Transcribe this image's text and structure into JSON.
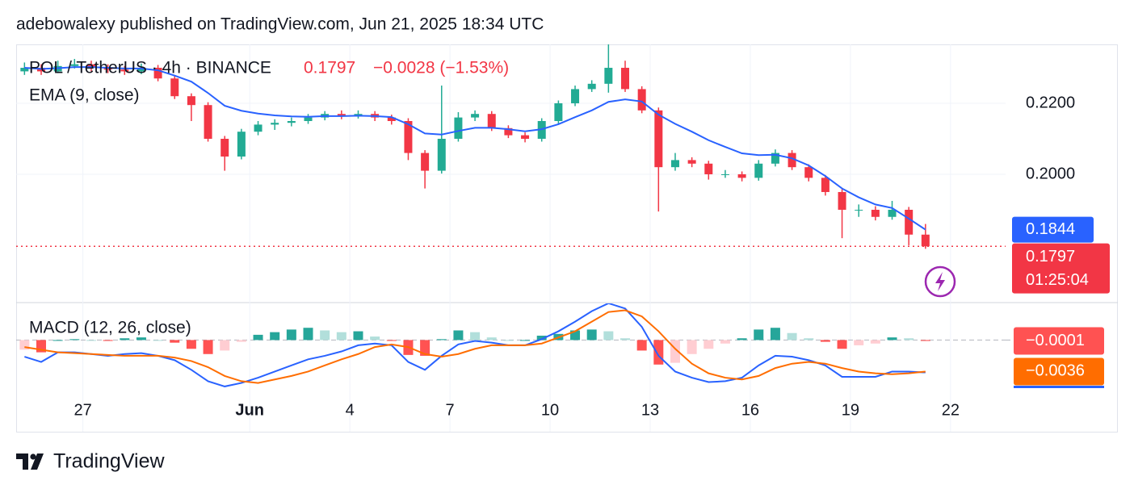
{
  "header": {
    "publisher": "adebowalexy published on TradingView.com, Jun 21, 2025 18:34 UTC",
    "logo": "TradingView"
  },
  "chart_data": [
    {
      "type": "candlestick",
      "symbol": "POL / TetherUS · 4h · BINANCE",
      "change": "−0.0028 (−1.53%)",
      "countdown": "01:25:04",
      "up_color": "#22ab94",
      "down_color": "#f23645",
      "open": [
        0.229,
        0.23,
        0.229,
        0.2305,
        0.231,
        0.23,
        0.2295,
        0.229,
        0.23,
        0.227,
        0.222,
        0.2195,
        0.21,
        0.205,
        0.212,
        0.214,
        0.2145,
        0.215,
        0.216,
        0.217,
        0.2165,
        0.217,
        0.216,
        0.215,
        0.206,
        0.201,
        0.21,
        0.216,
        0.217,
        0.213,
        0.211,
        0.21,
        0.215,
        0.22,
        0.224,
        0.2255,
        0.23,
        0.224,
        0.218,
        0.202,
        0.204,
        0.203,
        0.2,
        0.2,
        0.199,
        0.203,
        0.206,
        0.202,
        0.199,
        0.195,
        0.19,
        0.19,
        0.188,
        0.19,
        0.183
      ],
      "high": [
        0.2315,
        0.231,
        0.232,
        0.2325,
        0.232,
        0.231,
        0.2305,
        0.2312,
        0.2308,
        0.2278,
        0.2228,
        0.2203,
        0.2108,
        0.2128,
        0.215,
        0.2155,
        0.216,
        0.217,
        0.2178,
        0.218,
        0.218,
        0.2178,
        0.2168,
        0.2158,
        0.2068,
        0.225,
        0.2175,
        0.218,
        0.2178,
        0.2138,
        0.2118,
        0.2158,
        0.2208,
        0.225,
        0.2265,
        0.2366,
        0.232,
        0.2248,
        0.2188,
        0.206,
        0.2048,
        0.2038,
        0.2012,
        0.2008,
        0.204,
        0.207,
        0.2068,
        0.2028,
        0.1998,
        0.1958,
        0.1915,
        0.191,
        0.1925,
        0.1908,
        0.186
      ],
      "low": [
        0.228,
        0.228,
        0.2285,
        0.2298,
        0.229,
        0.2285,
        0.228,
        0.2282,
        0.2262,
        0.2212,
        0.215,
        0.2092,
        0.201,
        0.2042,
        0.211,
        0.2125,
        0.2135,
        0.2142,
        0.2152,
        0.2155,
        0.2157,
        0.215,
        0.214,
        0.204,
        0.196,
        0.2002,
        0.2092,
        0.215,
        0.2122,
        0.2102,
        0.209,
        0.2092,
        0.2142,
        0.2192,
        0.2232,
        0.223,
        0.2232,
        0.2172,
        0.1895,
        0.201,
        0.202,
        0.1985,
        0.199,
        0.198,
        0.1982,
        0.2022,
        0.2012,
        0.198,
        0.194,
        0.182,
        0.188,
        0.187,
        0.1872,
        0.18,
        0.179
      ],
      "close": [
        0.23,
        0.229,
        0.2305,
        0.231,
        0.23,
        0.2295,
        0.229,
        0.23,
        0.227,
        0.222,
        0.2195,
        0.21,
        0.205,
        0.212,
        0.214,
        0.2145,
        0.215,
        0.216,
        0.217,
        0.2165,
        0.217,
        0.216,
        0.215,
        0.206,
        0.201,
        0.21,
        0.216,
        0.217,
        0.213,
        0.211,
        0.21,
        0.215,
        0.22,
        0.224,
        0.2255,
        0.23,
        0.224,
        0.218,
        0.202,
        0.204,
        0.203,
        0.2,
        0.2,
        0.199,
        0.203,
        0.206,
        0.202,
        0.199,
        0.195,
        0.19,
        0.19,
        0.188,
        0.19,
        0.183,
        0.1797
      ],
      "overlay": {
        "name": "EMA (9, close)",
        "color": "#2962ff",
        "values": [
          0.23,
          0.2297,
          0.2299,
          0.2302,
          0.2302,
          0.23,
          0.2298,
          0.2298,
          0.2293,
          0.2278,
          0.2261,
          0.2229,
          0.2193,
          0.2179,
          0.2171,
          0.2166,
          0.2163,
          0.2162,
          0.2164,
          0.2164,
          0.2165,
          0.2164,
          0.2161,
          0.2141,
          0.2115,
          0.2112,
          0.2122,
          0.2131,
          0.2131,
          0.2127,
          0.2121,
          0.2127,
          0.2141,
          0.2161,
          0.218,
          0.2204,
          0.2211,
          0.2205,
          0.2168,
          0.2142,
          0.212,
          0.2096,
          0.2077,
          0.2059,
          0.2054,
          0.2055,
          0.2045,
          0.2025,
          0.1995,
          0.196,
          0.1935,
          0.1915,
          0.1905,
          0.1875,
          0.1844
        ]
      },
      "xlim": [
        0,
        59.3
      ],
      "xticks": [
        {
          "value": 4,
          "label": "27"
        },
        {
          "value": 14,
          "label": "Jun"
        },
        {
          "value": 20,
          "label": "4"
        },
        {
          "value": 26,
          "label": "7"
        },
        {
          "value": 32,
          "label": "10"
        },
        {
          "value": 38,
          "label": "13"
        },
        {
          "value": 44,
          "label": "16"
        },
        {
          "value": 50,
          "label": "19"
        },
        {
          "value": 56,
          "label": "22"
        }
      ],
      "ylim": [
        0.1643,
        0.2366
      ],
      "yticks": [
        {
          "value": 0.22,
          "label": "0.2200"
        },
        {
          "value": 0.2,
          "label": "0.2000"
        }
      ],
      "grid": true
    },
    {
      "type": "macd",
      "title": "MACD (12, 26, close)",
      "ylim": [
        -0.0054,
        0.004
      ],
      "macd": {
        "color": "#2962ff",
        "values": [
          -0.0019,
          -0.0025,
          -0.0014,
          -0.0014,
          -0.0016,
          -0.0018,
          -0.0016,
          -0.0015,
          -0.0018,
          -0.0023,
          -0.0034,
          -0.0047,
          -0.0053,
          -0.0049,
          -0.0043,
          -0.0036,
          -0.0029,
          -0.0022,
          -0.0018,
          -0.0013,
          -0.0006,
          -0.0004,
          -0.0006,
          -0.0025,
          -0.0034,
          -0.0018,
          -0.0005,
          -0.0001,
          -0.0003,
          -0.0006,
          -0.0006,
          0.0001,
          0.001,
          0.0021,
          0.0033,
          0.0042,
          0.0036,
          0.0015,
          -0.0018,
          -0.0036,
          -0.0043,
          -0.0048,
          -0.0047,
          -0.0043,
          -0.0029,
          -0.0018,
          -0.0019,
          -0.0023,
          -0.0029,
          -0.0042,
          -0.0042,
          -0.0042,
          -0.0036,
          -0.0036,
          -0.0037
        ]
      },
      "signal": {
        "color": "#ff6d00",
        "values": [
          -0.0008,
          -0.0011,
          -0.0014,
          -0.0015,
          -0.0016,
          -0.0017,
          -0.0018,
          -0.0018,
          -0.0018,
          -0.002,
          -0.0024,
          -0.0031,
          -0.0041,
          -0.0047,
          -0.0049,
          -0.0045,
          -0.0041,
          -0.0036,
          -0.0029,
          -0.0022,
          -0.0016,
          -0.0008,
          -0.0005,
          -0.0008,
          -0.0016,
          -0.0019,
          -0.0016,
          -0.001,
          -0.0006,
          -0.0006,
          -0.0006,
          -0.0004,
          0.0003,
          0.001,
          0.0021,
          0.0032,
          0.0034,
          0.0027,
          0.001,
          -0.001,
          -0.0027,
          -0.0038,
          -0.0043,
          -0.0045,
          -0.0041,
          -0.0032,
          -0.0027,
          -0.0025,
          -0.0027,
          -0.0032,
          -0.0036,
          -0.0038,
          -0.0039,
          -0.0038,
          -0.0036
        ],
        "value_labels": {
          "54": "−0.0036"
        }
      },
      "histogram": {
        "colors": [
          "#26a69a",
          "#b2dfdb",
          "#ff5252",
          "#ffcdd2"
        ],
        "values": [
          -0.0011,
          -0.0014,
          0.0,
          0.0001,
          0.0,
          -0.0001,
          0.0002,
          0.0003,
          0.0,
          -0.0003,
          -0.001,
          -0.0016,
          -0.0012,
          -0.0002,
          0.0006,
          0.0009,
          0.0012,
          0.0014,
          0.0011,
          0.0009,
          0.001,
          0.0004,
          -0.0001,
          -0.0017,
          -0.0018,
          0.0001,
          0.0011,
          0.0009,
          0.0003,
          0.0,
          0.0,
          0.0005,
          0.0007,
          0.0011,
          0.0012,
          0.001,
          0.0002,
          -0.0012,
          -0.0028,
          -0.0026,
          -0.0016,
          -0.001,
          -0.0004,
          0.0002,
          0.0012,
          0.0014,
          0.0008,
          0.0002,
          -0.0002,
          -0.001,
          -0.0006,
          -0.0004,
          0.0003,
          0.0002,
          -0.0001
        ],
        "value_labels": {
          "54": "−0.0001"
        }
      }
    }
  ]
}
